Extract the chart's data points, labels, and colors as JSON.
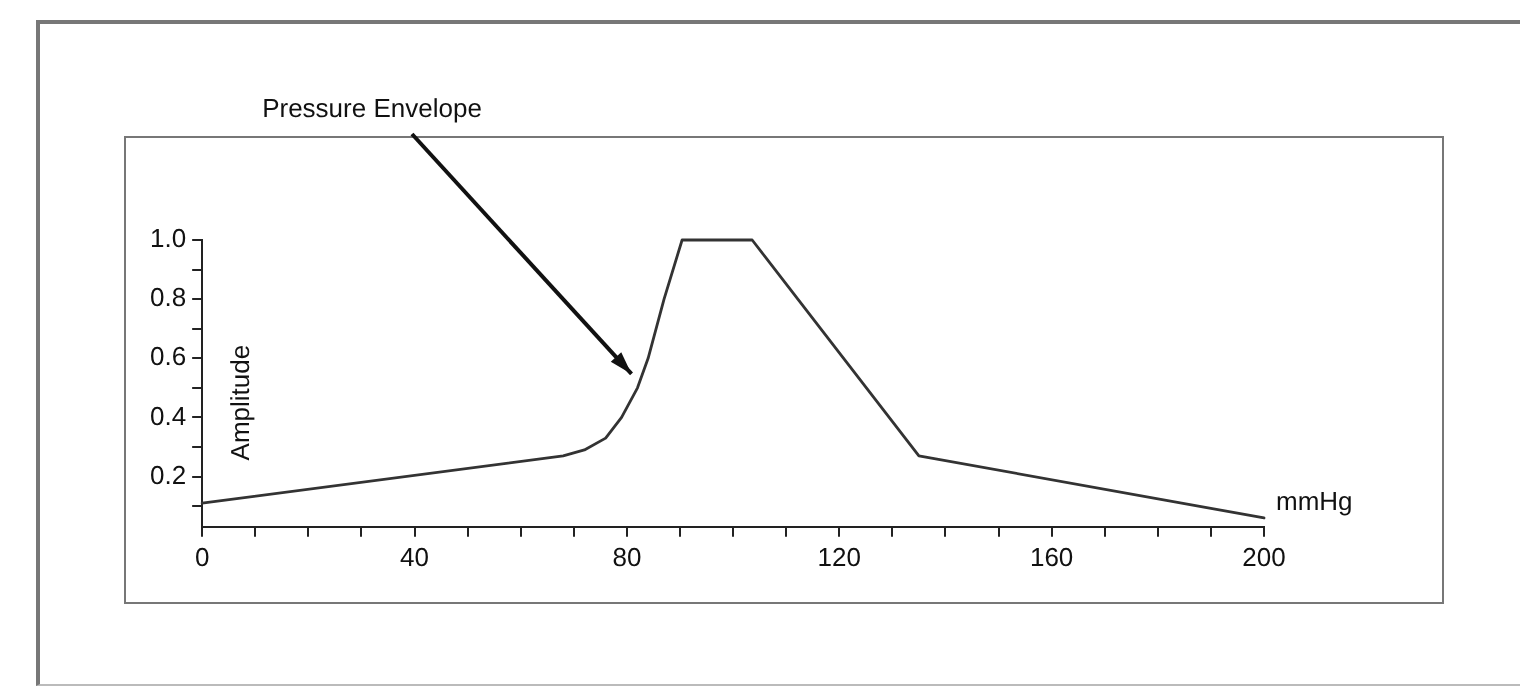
{
  "chart_data": {
    "type": "line",
    "xlabel": "mmHg",
    "ylabel": "Amplitude",
    "annotations": [
      {
        "text": "Pressure Envelope",
        "x": 82,
        "y": 0.52
      }
    ],
    "x": [
      0,
      68,
      72,
      76,
      79,
      82,
      84,
      87,
      90.4,
      103.6,
      135,
      200
    ],
    "series": [
      {
        "color": "#333333",
        "values": [
          0.11,
          0.27,
          0.29,
          0.33,
          0.4,
          0.5,
          0.6,
          0.8,
          1.0,
          1.0,
          0.27,
          0.06
        ]
      }
    ],
    "xlim": [
      0,
      200
    ],
    "xticks": [
      0,
      {
        "value": 10,
        "label": null
      },
      {
        "value": 20,
        "label": null
      },
      {
        "value": 30,
        "label": null
      },
      40,
      {
        "value": 50,
        "label": null
      },
      {
        "value": 60,
        "label": null
      },
      {
        "value": 70,
        "label": null
      },
      80,
      {
        "value": 90,
        "label": null
      },
      {
        "value": 100,
        "label": null
      },
      {
        "value": 110,
        "label": null
      },
      120,
      {
        "value": 130,
        "label": null
      },
      {
        "value": 140,
        "label": null
      },
      {
        "value": 150,
        "label": null
      },
      160,
      {
        "value": 170,
        "label": null
      },
      {
        "value": 180,
        "label": null
      },
      {
        "value": 190,
        "label": null
      },
      200
    ],
    "ylim": [
      0.03,
      1.0
    ],
    "yticks": [
      {
        "value": 0.1,
        "label": null
      },
      {
        "value": 0.2,
        "label": "0.2"
      },
      {
        "value": 0.3,
        "label": null
      },
      {
        "value": 0.4,
        "label": "0.4"
      },
      {
        "value": 0.5,
        "label": null
      },
      {
        "value": 0.6,
        "label": "0.6"
      },
      {
        "value": 0.7,
        "label": null
      },
      {
        "value": 0.8,
        "label": "0.8"
      },
      {
        "value": 0.9,
        "label": null
      },
      {
        "value": 1.0,
        "label": "1.0"
      }
    ],
    "grid": false,
    "legend": false,
    "marker": "none",
    "line_style": "solid"
  }
}
